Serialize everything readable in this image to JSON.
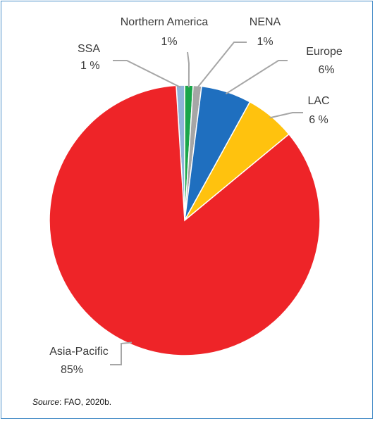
{
  "chart_data": {
    "type": "pie",
    "slices": [
      {
        "label": "SSA",
        "value_label": "1 %",
        "value": 1,
        "color": "#8fb4d9"
      },
      {
        "label": "Northern America",
        "value_label": "1%",
        "value": 1,
        "color": "#1aa64a"
      },
      {
        "label": "NENA",
        "value_label": "1%",
        "value": 1,
        "color": "#a6a6a6"
      },
      {
        "label": "Europe",
        "value_label": "6%",
        "value": 6,
        "color": "#1f6fbf"
      },
      {
        "label": "LAC",
        "value_label": "6 %",
        "value": 6,
        "color": "#ffc20e"
      },
      {
        "label": "Asia-Pacific",
        "value_label": "85%",
        "value": 85,
        "color": "#ee2428"
      }
    ],
    "leader_color": "#a6a6a6"
  },
  "source": {
    "prefix": "Source",
    "text": ": FAO, 2020b."
  }
}
